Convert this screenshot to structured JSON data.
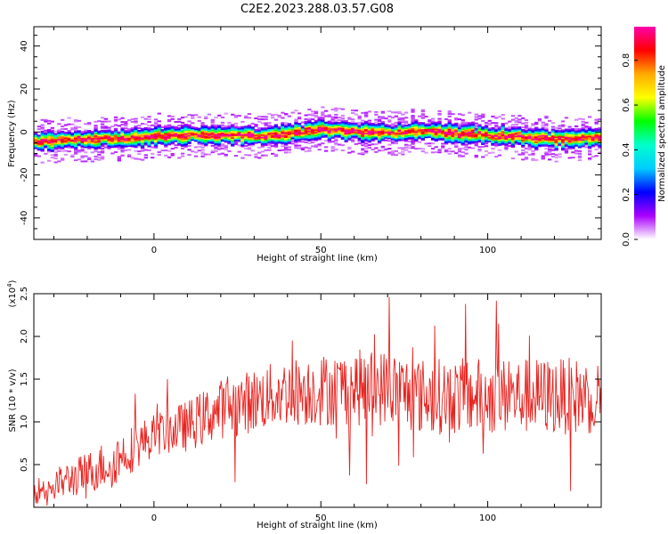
{
  "title": "C2E2.2023.288.03.57.G08",
  "colors": {
    "line": "#e8231f",
    "axis": "#000000"
  },
  "chart_data": [
    {
      "type": "heatmap",
      "xlabel": "Height of straight line (km)",
      "ylabel": "Frequency (Hz)",
      "xlim": [
        -36,
        134
      ],
      "ylim": [
        -50,
        49
      ],
      "xticks": [
        "0",
        "50",
        "100"
      ],
      "xtick_values": [
        0,
        50,
        100
      ],
      "yticks": [
        "40",
        "20",
        "0",
        "-20",
        "-40"
      ],
      "ytick_values": [
        40,
        20,
        0,
        -20,
        -40
      ],
      "colorbar": {
        "label": "Normalized spectral amplitude",
        "ticks": [
          "0.0",
          "0.2",
          "0.4",
          "0.6",
          "0.8"
        ],
        "tick_values": [
          0.0,
          0.2,
          0.4,
          0.6,
          0.8
        ],
        "range": [
          0,
          0.95
        ],
        "colormap": [
          "#ff00aa",
          "#ff0000",
          "#ffaa00",
          "#ffff00",
          "#00ff00",
          "#00ffcc",
          "#00ccff",
          "#0000ff",
          "#aa00ff",
          "#ffffff"
        ]
      },
      "ridge": {
        "x": [
          -36,
          -30,
          -25,
          -20,
          -15,
          -10,
          -5,
          0,
          10,
          20,
          30,
          40,
          50,
          60,
          70,
          80,
          90,
          100,
          110,
          120,
          134
        ],
        "center": [
          -4.5,
          -4.5,
          -3.5,
          -3.5,
          -3,
          -3.5,
          -3,
          -2,
          -1.5,
          -1.5,
          -2,
          -1,
          1,
          0,
          -0.5,
          0.5,
          -1,
          -1.5,
          -2.5,
          -3.5,
          -3
        ],
        "halfwidth_hz": 2.5
      }
    },
    {
      "type": "line",
      "xlabel": "Height of straight line (km)",
      "ylabel": "SNR (10 * v/v)",
      "scale_label_base": "(x10",
      "scale_label_exp": "4",
      "scale_label_end": ")",
      "xlim": [
        -36,
        134
      ],
      "ylim": [
        0,
        2.5
      ],
      "xticks": [
        "0",
        "50",
        "100"
      ],
      "xtick_values": [
        0,
        50,
        100
      ],
      "yticks": [
        "0.5",
        "1.0",
        "1.5",
        "2.0",
        "2.5"
      ],
      "ytick_values": [
        0.5,
        1.0,
        1.5,
        2.0,
        2.5
      ],
      "trend": {
        "x": [
          -36,
          -20,
          -12,
          0,
          10,
          20,
          40,
          60,
          70,
          80,
          100,
          120,
          134
        ],
        "mean": [
          0.18,
          0.4,
          0.55,
          0.85,
          0.95,
          1.15,
          1.35,
          1.4,
          1.4,
          1.3,
          1.3,
          1.3,
          1.3
        ],
        "spread": [
          0.15,
          0.25,
          0.3,
          0.25,
          0.3,
          0.35,
          0.4,
          0.45,
          0.45,
          0.45,
          0.45,
          0.45,
          0.45
        ]
      }
    }
  ]
}
